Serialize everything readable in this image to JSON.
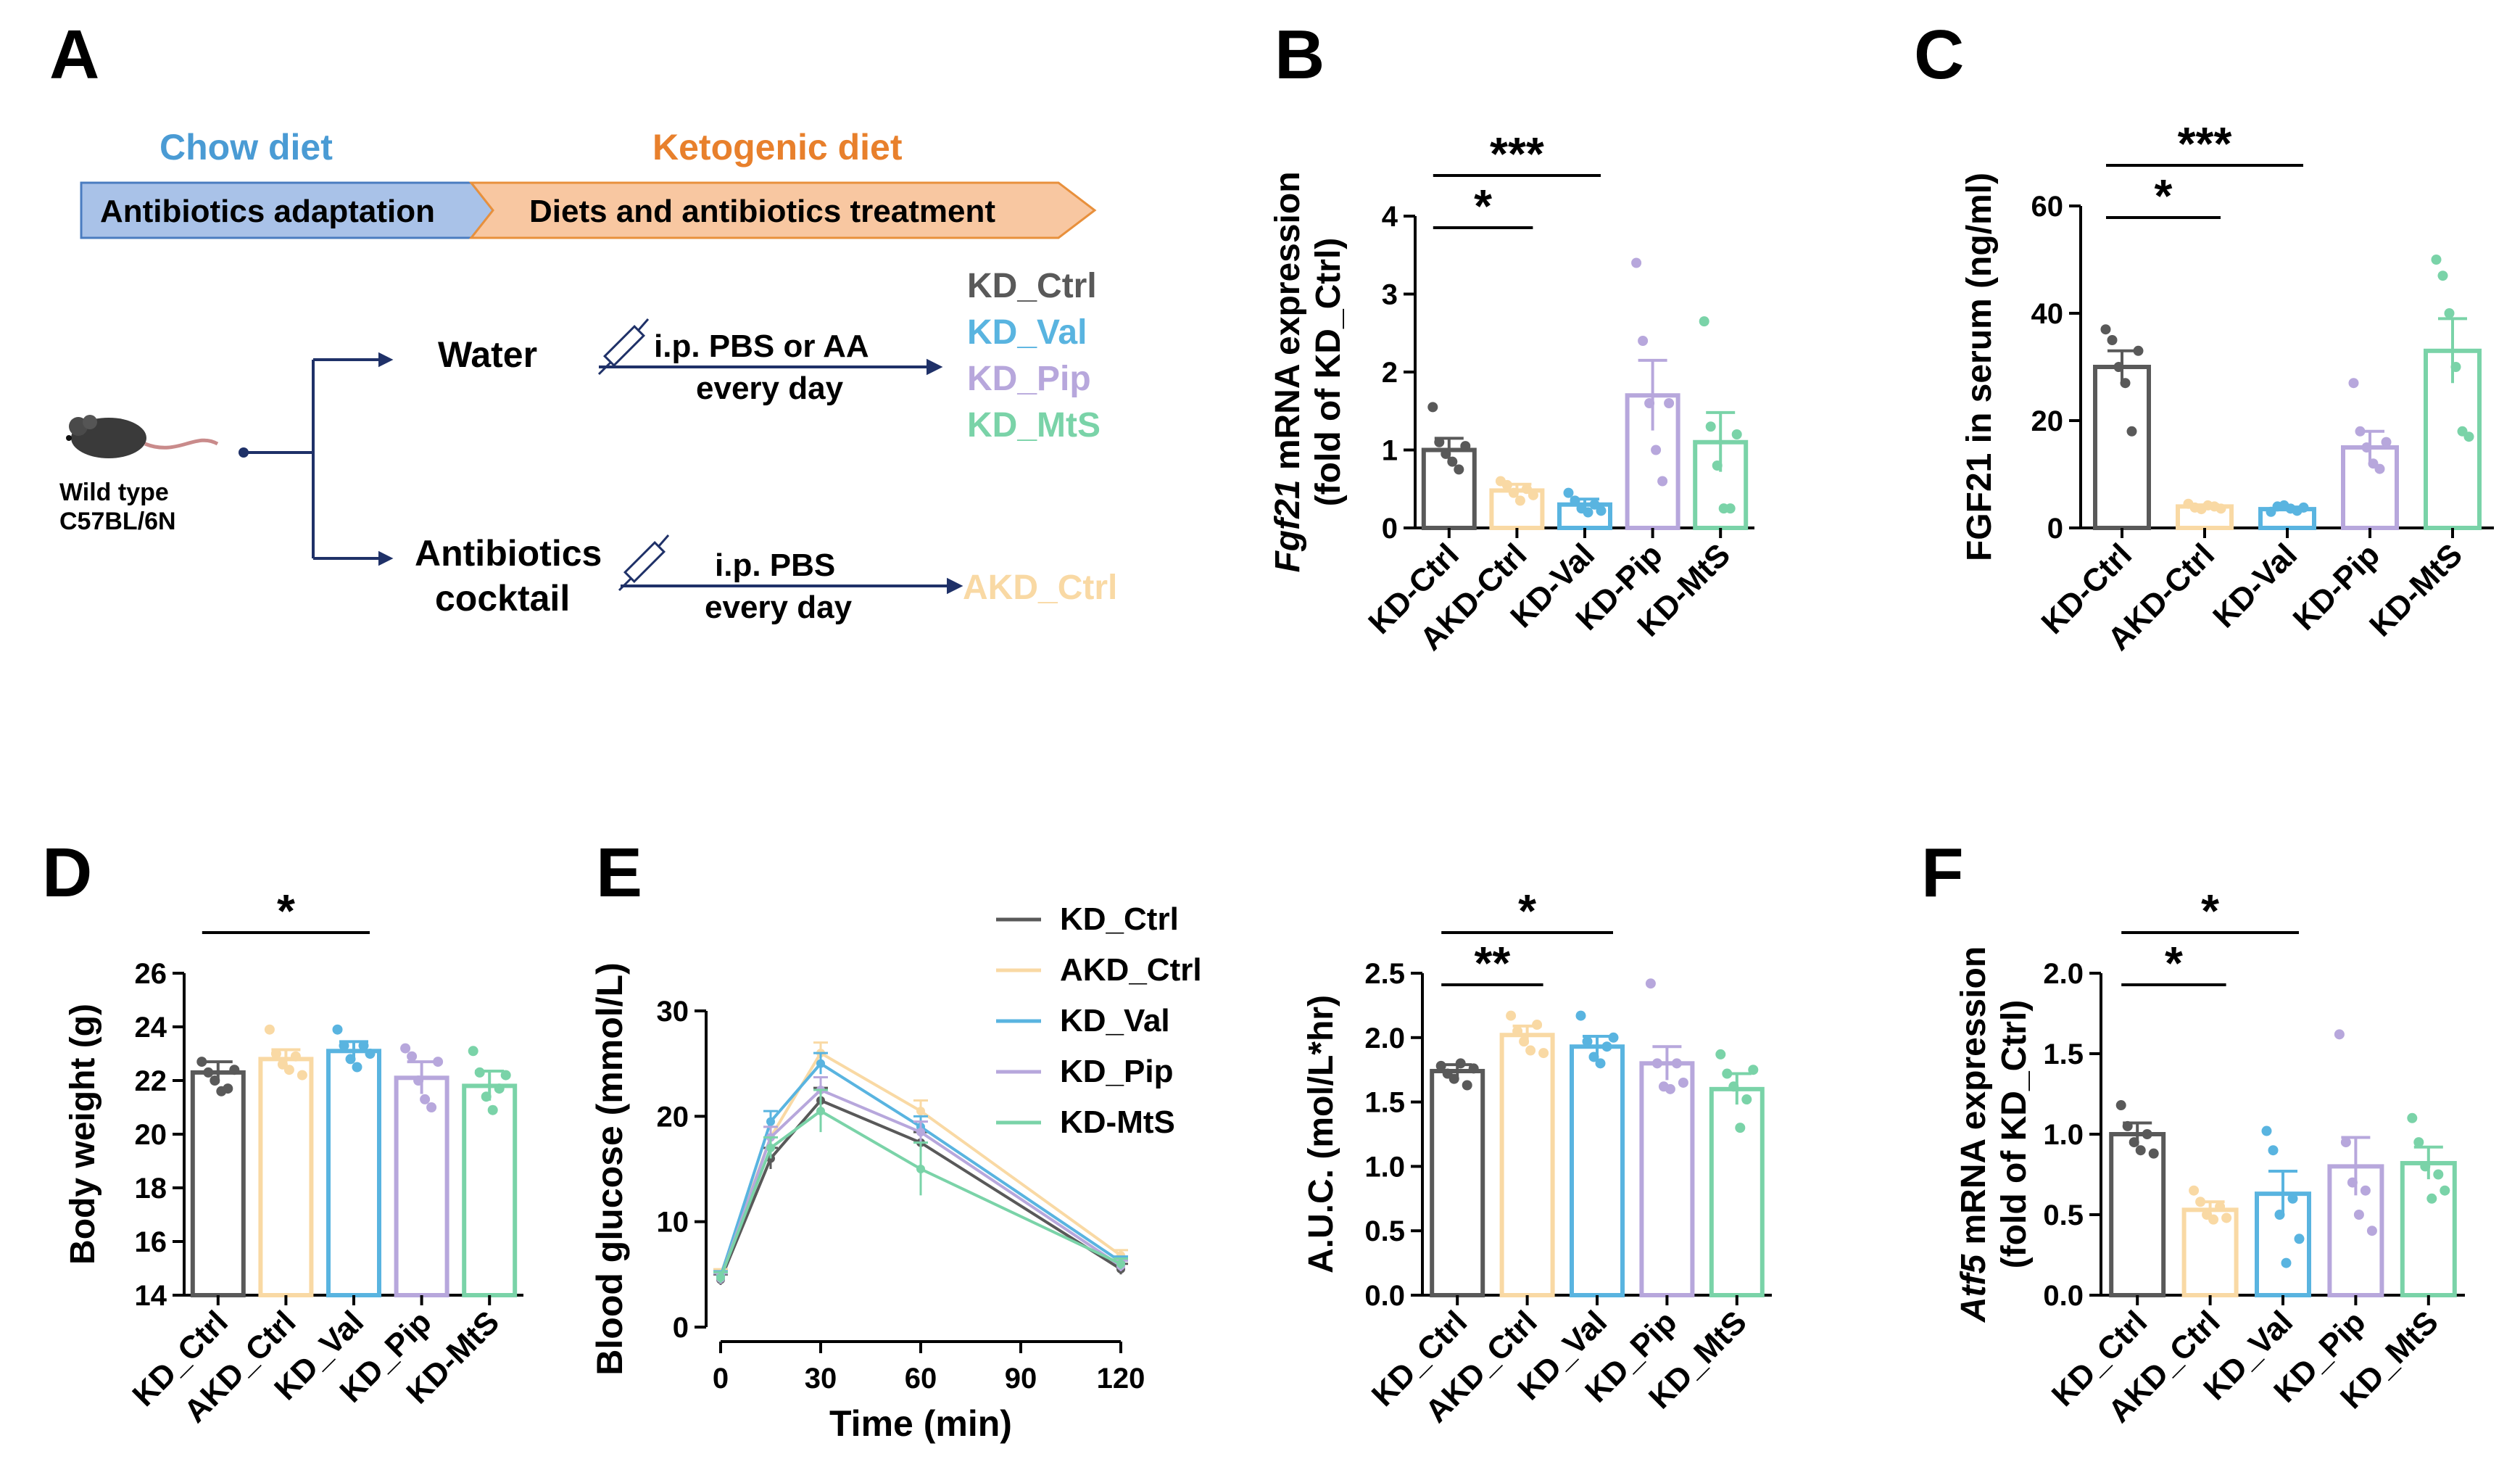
{
  "colors": {
    "KD_Ctrl": "#595959",
    "AKD_Ctrl": "#F9D9A4",
    "KD_Val": "#59B4E0",
    "KD_Pip": "#B7A7DC",
    "KD_MtS": "#7AD3A8",
    "chow": "#4A9BD4",
    "keto": "#E8802C",
    "arrow": "#1F3168"
  },
  "panel_a": {
    "letter": "A",
    "chow_label": "Chow diet",
    "keto_label": "Ketogenic diet",
    "bar_left": "Antibiotics adaptation",
    "bar_right": "Diets and antibiotics treatment",
    "mouse_line1": "Wild type",
    "mouse_line2": "C57BL/6N",
    "water": "Water",
    "antibiotics_line1": "Antibiotics",
    "antibiotics_line2": "cocktail",
    "water_route_line1": "i.p.  PBS or AA",
    "water_route_line2": "every day",
    "abx_route_line1": "i.p.  PBS",
    "abx_route_line2": "every day",
    "outcomes": [
      "KD_Ctrl",
      "KD_Val",
      "KD_Pip",
      "KD_MtS"
    ],
    "abx_outcome": "AKD_Ctrl",
    "icon_names": [
      "mouse-icon",
      "syringe-icon"
    ]
  },
  "chart_data": [
    {
      "panel": "B",
      "type": "bar",
      "categories": [
        "KD-Ctrl",
        "AKD-Ctrl",
        "KD-Val",
        "KD-Pip",
        "KD-MtS"
      ],
      "values": [
        1.0,
        0.48,
        0.3,
        1.7,
        1.1
      ],
      "errors": [
        0.15,
        0.08,
        0.07,
        0.45,
        0.38
      ],
      "points": [
        [
          1.55,
          1.1,
          0.95,
          0.85,
          0.75,
          1.05
        ],
        [
          0.6,
          0.55,
          0.45,
          0.35,
          0.5,
          0.42
        ],
        [
          0.45,
          0.35,
          0.25,
          0.2,
          0.3,
          0.22
        ],
        [
          3.4,
          2.4,
          1.6,
          1.0,
          0.6,
          1.6
        ],
        [
          2.65,
          1.3,
          0.8,
          0.25,
          0.25,
          1.2
        ]
      ],
      "ylim": [
        0,
        4
      ],
      "yticks": [
        0,
        1,
        2,
        3,
        4
      ],
      "ylabel_italic": "Fgf21",
      "ylabel": " mRNA expression",
      "ylabel2": "(fold of KD_Ctrl)",
      "significance": [
        {
          "from": 0,
          "to": 1,
          "label": "*"
        },
        {
          "from": 0,
          "to": 2,
          "label": "***"
        }
      ]
    },
    {
      "panel": "C",
      "type": "bar",
      "categories": [
        "KD-Ctrl",
        "AKD-Ctrl",
        "KD-Val",
        "KD-Pip",
        "KD-MtS"
      ],
      "values": [
        30,
        4,
        3.5,
        15,
        33
      ],
      "errors": [
        3,
        0.3,
        0.4,
        3,
        6
      ],
      "points": [
        [
          37,
          35,
          30,
          27,
          18,
          33
        ],
        [
          4.5,
          3.8,
          3.5,
          4.2,
          4,
          3.6
        ],
        [
          3,
          4,
          4.2,
          3.6,
          3.2,
          3.8
        ],
        [
          27,
          18,
          15,
          12,
          11,
          16
        ],
        [
          50,
          47,
          40,
          30,
          18,
          17
        ]
      ],
      "ylim": [
        0,
        60
      ],
      "yticks": [
        0,
        20,
        40,
        60
      ],
      "ylabel": "FGF21 in serum  (ng/ml)",
      "significance": [
        {
          "from": 0,
          "to": 1,
          "label": "*"
        },
        {
          "from": 0,
          "to": 2,
          "label": "***"
        }
      ]
    },
    {
      "panel": "D",
      "type": "bar",
      "categories": [
        "KD_Ctrl",
        "AKD_Ctrl",
        "KD_Val",
        "KD_Pip",
        "KD-MtS"
      ],
      "values": [
        22.3,
        22.8,
        23.1,
        22.1,
        21.8
      ],
      "errors": [
        0.4,
        0.35,
        0.35,
        0.6,
        0.55
      ],
      "points": [
        [
          22.7,
          22.3,
          22.0,
          21.6,
          21.7,
          22.4
        ],
        [
          23.9,
          23.0,
          22.6,
          22.4,
          22.9,
          22.2
        ],
        [
          23.9,
          23.3,
          22.8,
          22.5,
          23.3,
          23.0
        ],
        [
          23.2,
          22.9,
          22.0,
          21.3,
          21.0,
          22.7
        ],
        [
          23.1,
          22.3,
          21.4,
          20.9,
          21.7,
          22.2
        ]
      ],
      "ylim": [
        14,
        26
      ],
      "yticks": [
        14,
        16,
        18,
        20,
        22,
        24,
        26
      ],
      "ylabel": "Body weight (g)",
      "significance": [
        {
          "from": 0,
          "to": 2,
          "label": "*"
        }
      ]
    },
    {
      "panel": "E",
      "type": "line",
      "x": [
        0,
        15,
        30,
        60,
        120
      ],
      "xticks": [
        0,
        30,
        60,
        90,
        120
      ],
      "series": [
        {
          "name": "KD_Ctrl",
          "values": [
            4.5,
            16,
            21.5,
            17.5,
            5.5
          ],
          "errors": [
            0.5,
            1,
            1.2,
            1,
            0.5
          ]
        },
        {
          "name": "AKD_Ctrl",
          "values": [
            5,
            18,
            26,
            20.5,
            6.8
          ],
          "errors": [
            0.5,
            1,
            1,
            1,
            0.5
          ]
        },
        {
          "name": "KD_Val",
          "values": [
            4.8,
            19.5,
            25,
            19,
            6.2
          ],
          "errors": [
            0.5,
            1,
            1,
            1,
            0.5
          ]
        },
        {
          "name": "KD_Pip",
          "values": [
            4.6,
            18,
            22.5,
            18.5,
            5.8
          ],
          "errors": [
            0.5,
            1,
            1.2,
            1,
            0.5
          ]
        },
        {
          "name": "KD-MtS",
          "values": [
            4.7,
            17,
            20.5,
            15,
            6
          ],
          "errors": [
            0.5,
            1,
            2,
            2.5,
            0.5
          ]
        }
      ],
      "ylim": [
        0,
        30
      ],
      "yticks": [
        0,
        10,
        20,
        30
      ],
      "xlim": [
        0,
        120
      ],
      "xlabel": "Time (min)",
      "ylabel": "Blood glucose (mmol/L)"
    },
    {
      "panel": "E-auc",
      "type": "bar",
      "categories": [
        "KD_Ctrl",
        "AKD_Ctrl",
        "KD_Val",
        "KD_Pip",
        "KD_MtS"
      ],
      "values": [
        1.74,
        2.02,
        1.93,
        1.8,
        1.6
      ],
      "errors": [
        0.05,
        0.07,
        0.08,
        0.13,
        0.12
      ],
      "points": [
        [
          1.78,
          1.72,
          1.68,
          1.8,
          1.63,
          1.76
        ],
        [
          2.17,
          2.05,
          1.97,
          1.9,
          2.1,
          1.88
        ],
        [
          2.17,
          1.97,
          1.85,
          1.8,
          1.93,
          2.0
        ],
        [
          2.42,
          1.8,
          1.62,
          1.6,
          1.8,
          1.65
        ],
        [
          1.87,
          1.72,
          1.62,
          1.3,
          1.52,
          1.75
        ]
      ],
      "ylim": [
        0,
        2.5
      ],
      "yticks": [
        0.0,
        0.5,
        1.0,
        1.5,
        2.0,
        2.5
      ],
      "tick_labels": [
        "0.0",
        "0.5",
        "1.0",
        "1.5",
        "2.0",
        "2.5"
      ],
      "ylabel": "A.U.C. (mol/L*hr)",
      "significance": [
        {
          "from": 0,
          "to": 1,
          "label": "**"
        },
        {
          "from": 0,
          "to": 2,
          "label": "*"
        }
      ]
    },
    {
      "panel": "F",
      "type": "bar",
      "categories": [
        "KD_Ctrl",
        "AKD_Ctrl",
        "KD_Val",
        "KD_Pip",
        "KD_MtS"
      ],
      "values": [
        1.0,
        0.53,
        0.63,
        0.8,
        0.82
      ],
      "errors": [
        0.07,
        0.05,
        0.14,
        0.18,
        0.1
      ],
      "points": [
        [
          1.18,
          1.05,
          0.95,
          0.9,
          1.0,
          0.88
        ],
        [
          0.65,
          0.58,
          0.5,
          0.47,
          0.55,
          0.48
        ],
        [
          1.02,
          0.9,
          0.5,
          0.2,
          0.6,
          0.35
        ],
        [
          1.62,
          0.95,
          0.7,
          0.5,
          0.65,
          0.4
        ],
        [
          1.1,
          0.95,
          0.8,
          0.6,
          0.75,
          0.65
        ]
      ],
      "ylim": [
        0,
        2
      ],
      "yticks": [
        0.0,
        0.5,
        1.0,
        1.5,
        2.0
      ],
      "tick_labels": [
        "0.0",
        "0.5",
        "1.0",
        "1.5",
        "2.0"
      ],
      "ylabel_italic": "Atf5",
      "ylabel": " mRNA expression",
      "ylabel2": "(fold of KD_Ctrl)",
      "significance": [
        {
          "from": 0,
          "to": 1,
          "label": "*"
        },
        {
          "from": 0,
          "to": 2,
          "label": "*"
        }
      ]
    }
  ],
  "letters": {
    "B": "B",
    "C": "C",
    "D": "D",
    "E": "E",
    "F": "F"
  }
}
